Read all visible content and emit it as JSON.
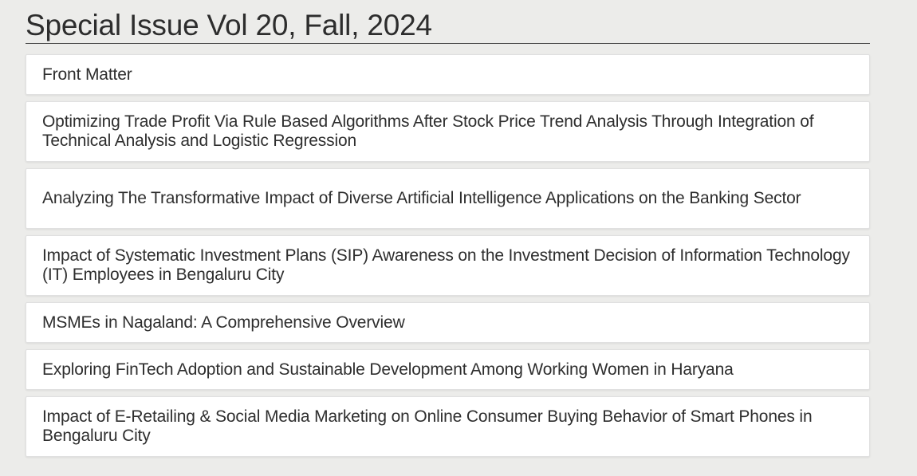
{
  "issue": {
    "title": "Special Issue Vol 20, Fall, 2024"
  },
  "articles": [
    {
      "title": "Front Matter"
    },
    {
      "title": "Optimizing Trade Profit Via Rule Based Algorithms After Stock Price Trend Analysis Through Integration of Technical Analysis and Logistic Regression"
    },
    {
      "title": "Analyzing The Transformative Impact of Diverse Artificial Intelligence Applications on the Banking Sector"
    },
    {
      "title": "Impact of Systematic Investment Plans (SIP) Awareness on the Investment Decision of Information Technology (IT) Employees in Bengaluru City"
    },
    {
      "title": "MSMEs in Nagaland: A Comprehensive Overview"
    },
    {
      "title": "Exploring FinTech Adoption and Sustainable Development Among Working Women in Haryana"
    },
    {
      "title": "Impact of E-Retailing & Social Media Marketing on Online Consumer Buying Behavior of Smart Phones in Bengaluru City"
    }
  ]
}
